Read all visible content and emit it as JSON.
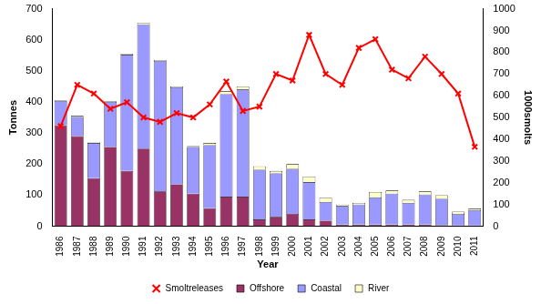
{
  "chart_data": {
    "type": "bar",
    "stacked": true,
    "grid": false,
    "legend": "bottom",
    "x_label": "Year",
    "y_label": "Tonnes",
    "y2_label": "1000smolts",
    "categories": [
      "1986",
      "1987",
      "1988",
      "1989",
      "1990",
      "1991",
      "1992",
      "1993",
      "1994",
      "1995",
      "1996",
      "1997",
      "1998",
      "1999",
      "2000",
      "2001",
      "2002",
      "2003",
      "2004",
      "2005",
      "2006",
      "2007",
      "2008",
      "2009",
      "2010",
      "2011"
    ],
    "ylim": [
      0,
      700
    ],
    "yticks": [
      0,
      100,
      200,
      300,
      400,
      500,
      600,
      700
    ],
    "y2lim": [
      0,
      1000
    ],
    "y2ticks": [
      0,
      100,
      200,
      300,
      400,
      500,
      600,
      700,
      800,
      900,
      1000
    ],
    "series": [
      {
        "name": "Offshore",
        "color": "#993366",
        "type": "bar",
        "values": [
          325,
          290,
          155,
          255,
          178,
          250,
          112,
          135,
          105,
          58,
          95,
          95,
          22,
          30,
          40,
          22,
          18,
          5,
          5,
          5,
          5,
          5,
          5,
          3,
          2,
          2
        ]
      },
      {
        "name": "Coastal",
        "color": "#9999ff",
        "type": "bar",
        "values": [
          78,
          62,
          113,
          145,
          374,
          400,
          420,
          312,
          150,
          203,
          330,
          345,
          160,
          140,
          145,
          120,
          60,
          60,
          65,
          88,
          100,
          70,
          97,
          85,
          38,
          50
        ]
      },
      {
        "name": "River",
        "color": "#ffffcc",
        "type": "bar",
        "values": [
          2,
          3,
          2,
          2,
          3,
          5,
          3,
          3,
          3,
          7,
          10,
          10,
          11,
          8,
          15,
          18,
          14,
          5,
          5,
          17,
          10,
          10,
          10,
          12,
          7,
          5
        ]
      },
      {
        "name": "Smoltreleases",
        "color": "#ff0000",
        "type": "line",
        "axis": "y2",
        "marker": "x",
        "line_style": "solid",
        "values": [
          460,
          650,
          610,
          540,
          570,
          500,
          480,
          520,
          500,
          560,
          665,
          530,
          550,
          700,
          670,
          880,
          700,
          650,
          820,
          860,
          720,
          680,
          780,
          700,
          610,
          365
        ]
      }
    ]
  }
}
